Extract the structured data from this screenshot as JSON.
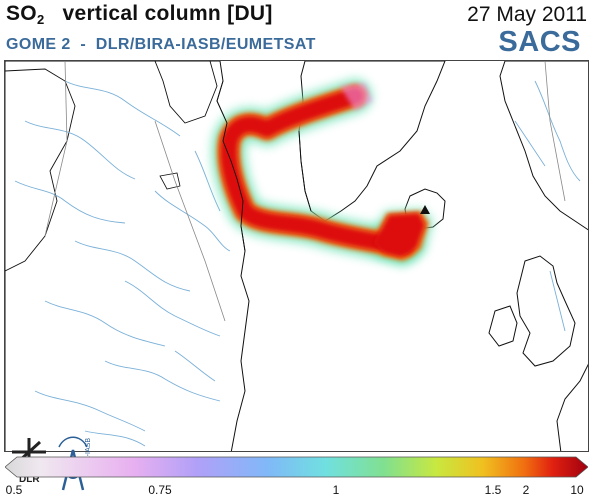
{
  "header": {
    "title_species": "SO",
    "title_subscript": "2",
    "title_rest": "vertical column [DU]",
    "date": "27 May 2011",
    "source": "GOME 2  -  DLR/BIRA-IASB/EUMETSAT",
    "brand": "SACS"
  },
  "logos": {
    "dlr_text": "DLR",
    "bira_text": "BIRA-IASB"
  },
  "colorbar": {
    "ticks": [
      "0.5",
      "0.75",
      "1",
      "1.5",
      "2",
      "10"
    ],
    "colors": [
      "#d8d8d8",
      "#f0d8f0",
      "#e0b0f0",
      "#c0a0f0",
      "#9aa8f8",
      "#80d0f0",
      "#60e0c0",
      "#80e080",
      "#d0e840",
      "#f0c020",
      "#f07010",
      "#e02010",
      "#a00010"
    ]
  },
  "map": {
    "volcano_marker": "triangle",
    "colors": {
      "land": "#ffffff",
      "water_lines": "#7ab0d8",
      "coast": "#111111",
      "plume_core": "#dd1010",
      "plume_edge": "#60e0a0"
    }
  }
}
